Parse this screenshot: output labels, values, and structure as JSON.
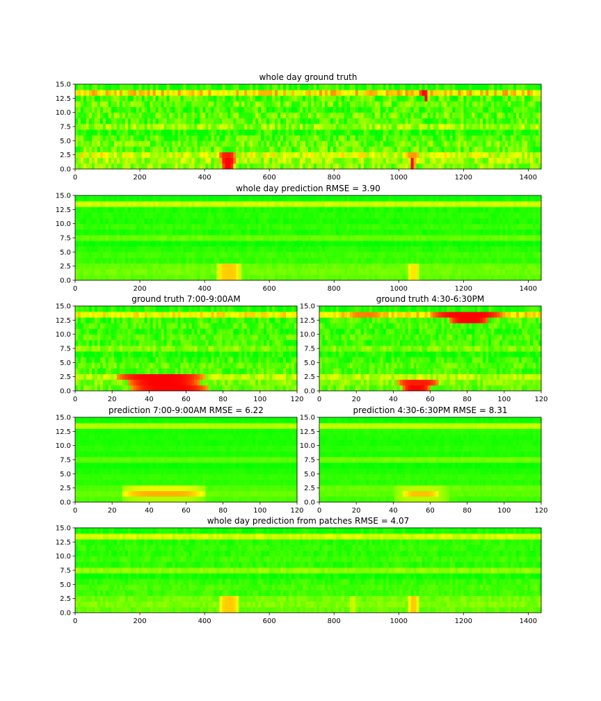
{
  "chart_data": [
    {
      "type": "heatmap",
      "title": "whole day ground truth",
      "xlim": [
        0,
        1440
      ],
      "ylim": [
        0,
        15
      ],
      "xticks": [
        0,
        200,
        400,
        600,
        800,
        1000,
        1200,
        1400
      ],
      "yticks": [
        0.0,
        2.5,
        5.0,
        7.5,
        10.0,
        12.5,
        15.0
      ],
      "colormap": [
        "#00ff00",
        "#ffff00",
        "#ff0000"
      ],
      "value_range": [
        0,
        1
      ],
      "rows": 15,
      "row_base_values": [
        0.25,
        0.3,
        0.42,
        0.18,
        0.22,
        0.15,
        0.05,
        0.3,
        0.15,
        0.2,
        0.12,
        0.2,
        0.15,
        0.55,
        0.05
      ],
      "row_noise": 0.35,
      "hotspots": [
        {
          "x": [
            455,
            490
          ],
          "y": [
            0,
            1
          ],
          "value": 1.0
        },
        {
          "x": [
            450,
            495
          ],
          "y": [
            1,
            2
          ],
          "value": 1.0
        },
        {
          "x": [
            445,
            495
          ],
          "y": [
            2,
            3
          ],
          "value": 0.95
        },
        {
          "x": [
            1035,
            1050
          ],
          "y": [
            0,
            2
          ],
          "value": 1.0
        },
        {
          "x": [
            1020,
            1065
          ],
          "y": [
            2,
            3
          ],
          "value": 0.7
        },
        {
          "x": [
            1065,
            1090
          ],
          "y": [
            13,
            14
          ],
          "value": 1.0
        },
        {
          "x": [
            1080,
            1090
          ],
          "y": [
            12,
            13
          ],
          "value": 1.0
        }
      ]
    },
    {
      "type": "heatmap",
      "title": "whole day prediction RMSE = 3.90",
      "xlim": [
        0,
        1440
      ],
      "ylim": [
        0,
        15
      ],
      "xticks": [
        0,
        200,
        400,
        600,
        800,
        1000,
        1200,
        1400
      ],
      "yticks": [
        0.0,
        2.5,
        5.0,
        7.5,
        10.0,
        12.5,
        15.0
      ],
      "colormap": [
        "#00ff00",
        "#ffff00",
        "#ff0000"
      ],
      "value_range": [
        0,
        1
      ],
      "rows": 15,
      "row_base_values": [
        0.18,
        0.22,
        0.2,
        0.1,
        0.12,
        0.08,
        0.02,
        0.2,
        0.06,
        0.1,
        0.06,
        0.08,
        0.06,
        0.4,
        0.02
      ],
      "row_noise": 0.08,
      "hotspots": [
        {
          "x": [
            440,
            510
          ],
          "y": [
            0,
            3
          ],
          "value": 0.6
        },
        {
          "x": [
            1030,
            1060
          ],
          "y": [
            0,
            3
          ],
          "value": 0.55
        }
      ]
    },
    {
      "type": "heatmap",
      "title": "ground truth 7:00-9:00AM",
      "xlim": [
        0,
        120
      ],
      "ylim": [
        0,
        15
      ],
      "xticks": [
        0,
        20,
        40,
        60,
        80,
        100,
        120
      ],
      "yticks": [
        0.0,
        2.5,
        5.0,
        7.5,
        10.0,
        12.5,
        15.0
      ],
      "colormap": [
        "#00ff00",
        "#ffff00",
        "#ff0000"
      ],
      "value_range": [
        0,
        1
      ],
      "rows": 15,
      "row_base_values": [
        0.2,
        0.25,
        0.35,
        0.15,
        0.18,
        0.12,
        0.05,
        0.25,
        0.12,
        0.15,
        0.1,
        0.15,
        0.12,
        0.5,
        0.05
      ],
      "row_noise": 0.25,
      "hotspots": [
        {
          "x": [
            30,
            72
          ],
          "y": [
            0,
            1
          ],
          "value": 1.0
        },
        {
          "x": [
            28,
            68
          ],
          "y": [
            1,
            2
          ],
          "value": 1.0
        },
        {
          "x": [
            22,
            70
          ],
          "y": [
            2,
            3
          ],
          "value": 1.0
        }
      ]
    },
    {
      "type": "heatmap",
      "title": "ground truth 4:30-6:30PM",
      "xlim": [
        0,
        120
      ],
      "ylim": [
        0,
        15
      ],
      "xticks": [
        0,
        20,
        40,
        60,
        80,
        100,
        120
      ],
      "yticks": [
        0.0,
        2.5,
        5.0,
        7.5,
        10.0,
        12.5,
        15.0
      ],
      "colormap": [
        "#00ff00",
        "#ffff00",
        "#ff0000"
      ],
      "value_range": [
        0,
        1
      ],
      "rows": 15,
      "row_base_values": [
        0.2,
        0.25,
        0.35,
        0.15,
        0.18,
        0.12,
        0.05,
        0.25,
        0.12,
        0.15,
        0.1,
        0.15,
        0.15,
        0.55,
        0.05
      ],
      "row_noise": 0.25,
      "hotspots": [
        {
          "x": [
            45,
            60
          ],
          "y": [
            0,
            1
          ],
          "value": 1.0
        },
        {
          "x": [
            42,
            65
          ],
          "y": [
            1,
            2
          ],
          "value": 0.95
        },
        {
          "x": [
            60,
            100
          ],
          "y": [
            13,
            14
          ],
          "value": 1.0
        },
        {
          "x": [
            70,
            92
          ],
          "y": [
            12,
            13
          ],
          "value": 1.0
        },
        {
          "x": [
            15,
            35
          ],
          "y": [
            13,
            14
          ],
          "value": 0.75
        }
      ]
    },
    {
      "type": "heatmap",
      "title": "prediction 7:00-9:00AM RMSE = 6.22",
      "xlim": [
        0,
        120
      ],
      "ylim": [
        0,
        15
      ],
      "xticks": [
        0,
        20,
        40,
        60,
        80,
        100,
        120
      ],
      "yticks": [
        0.0,
        2.5,
        5.0,
        7.5,
        10.0,
        12.5,
        15.0
      ],
      "colormap": [
        "#00ff00",
        "#ffff00",
        "#ff0000"
      ],
      "value_range": [
        0,
        1
      ],
      "rows": 15,
      "row_base_values": [
        0.15,
        0.2,
        0.15,
        0.08,
        0.1,
        0.06,
        0.02,
        0.18,
        0.05,
        0.08,
        0.05,
        0.06,
        0.05,
        0.35,
        0.02
      ],
      "row_noise": 0.04,
      "hotspots": [
        {
          "x": [
            25,
            70
          ],
          "y": [
            1,
            2
          ],
          "value": 0.65
        },
        {
          "x": [
            25,
            70
          ],
          "y": [
            2,
            3
          ],
          "value": 0.45
        },
        {
          "x": [
            25,
            70
          ],
          "y": [
            0,
            1
          ],
          "value": 0.35
        }
      ]
    },
    {
      "type": "heatmap",
      "title": "prediction 4:30-6:30PM RMSE = 8.31",
      "xlim": [
        0,
        120
      ],
      "ylim": [
        0,
        15
      ],
      "xticks": [
        0,
        20,
        40,
        60,
        80,
        100,
        120
      ],
      "yticks": [
        0.0,
        2.5,
        5.0,
        7.5,
        10.0,
        12.5,
        15.0
      ],
      "colormap": [
        "#00ff00",
        "#ffff00",
        "#ff0000"
      ],
      "value_range": [
        0,
        1
      ],
      "rows": 15,
      "row_base_values": [
        0.12,
        0.18,
        0.2,
        0.08,
        0.1,
        0.06,
        0.02,
        0.22,
        0.05,
        0.08,
        0.05,
        0.06,
        0.08,
        0.38,
        0.02
      ],
      "row_noise": 0.05,
      "hotspots": [
        {
          "x": [
            45,
            65
          ],
          "y": [
            1,
            2
          ],
          "value": 0.62
        },
        {
          "x": [
            40,
            70
          ],
          "y": [
            0,
            3
          ],
          "value": 0.35
        }
      ]
    },
    {
      "type": "heatmap",
      "title": "whole day prediction from patches RMSE = 4.07",
      "xlim": [
        0,
        1440
      ],
      "ylim": [
        0,
        15
      ],
      "xticks": [
        0,
        200,
        400,
        600,
        800,
        1000,
        1200,
        1400
      ],
      "yticks": [
        0.0,
        2.5,
        5.0,
        7.5,
        10.0,
        12.5,
        15.0
      ],
      "colormap": [
        "#00ff00",
        "#ffff00",
        "#ff0000"
      ],
      "value_range": [
        0,
        1
      ],
      "rows": 15,
      "row_base_values": [
        0.2,
        0.25,
        0.22,
        0.12,
        0.14,
        0.1,
        0.03,
        0.28,
        0.08,
        0.12,
        0.08,
        0.1,
        0.08,
        0.42,
        0.03
      ],
      "row_noise": 0.12,
      "hotspots": [
        {
          "x": [
            445,
            505
          ],
          "y": [
            0,
            3
          ],
          "value": 0.6
        },
        {
          "x": [
            1030,
            1060
          ],
          "y": [
            0,
            3
          ],
          "value": 0.6
        },
        {
          "x": [
            850,
            870
          ],
          "y": [
            0,
            3
          ],
          "value": 0.4
        }
      ]
    }
  ]
}
